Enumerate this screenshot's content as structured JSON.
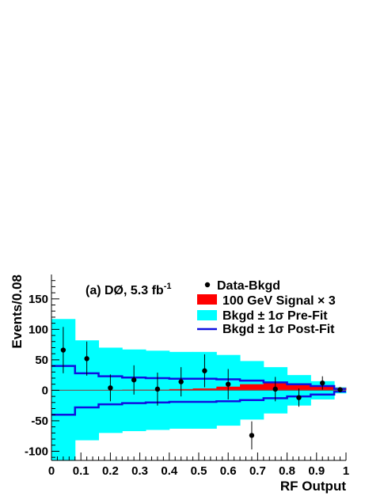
{
  "chart_data": {
    "type": "bar",
    "title": "(a) DØ, 5.3 fb",
    "title_sup": "-1",
    "xlabel": "RF Output",
    "ylabel": "Events/0.08",
    "xlim": [
      0,
      1
    ],
    "ylim": [
      -115,
      190
    ],
    "xticks": [
      0,
      0.1,
      0.2,
      0.3,
      0.4,
      0.5,
      0.6,
      0.7,
      0.8,
      0.9,
      1
    ],
    "xtick_labels": [
      "0",
      "0.1",
      "0.2",
      "0.3",
      "0.4",
      "0.5",
      "0.6",
      "0.7",
      "0.8",
      "0.9",
      "1"
    ],
    "yticks": [
      -100,
      -50,
      0,
      50,
      100,
      150
    ],
    "ytick_labels": [
      "-100",
      "-50",
      "0",
      "50",
      "100",
      "150"
    ],
    "bin_edges": [
      0,
      0.08,
      0.16,
      0.24,
      0.32,
      0.4,
      0.48,
      0.56,
      0.64,
      0.72,
      0.8,
      0.88,
      0.96,
      1.0
    ],
    "prefit_band": [
      117,
      82,
      70,
      67,
      65,
      63,
      63,
      58,
      48,
      38,
      25,
      15,
      5
    ],
    "postfit_band": [
      40,
      28,
      23,
      21,
      20,
      19,
      19,
      18,
      16,
      13,
      10,
      7,
      2
    ],
    "signal_x3": [
      0,
      0,
      0,
      1,
      1,
      2,
      3,
      6,
      10,
      12,
      9,
      6,
      4
    ],
    "data_minus_bkgd": [
      {
        "x": 0.04,
        "y": 66,
        "err": 38
      },
      {
        "x": 0.12,
        "y": 52,
        "err": 28
      },
      {
        "x": 0.2,
        "y": 4,
        "err": 22
      },
      {
        "x": 0.28,
        "y": 17,
        "err": 24
      },
      {
        "x": 0.36,
        "y": 2,
        "err": 27
      },
      {
        "x": 0.44,
        "y": 14,
        "err": 24
      },
      {
        "x": 0.52,
        "y": 32,
        "err": 27
      },
      {
        "x": 0.6,
        "y": 10,
        "err": 25
      },
      {
        "x": 0.68,
        "y": -74,
        "err": 23
      },
      {
        "x": 0.76,
        "y": 2,
        "err": 20
      },
      {
        "x": 0.84,
        "y": -12,
        "err": 15
      },
      {
        "x": 0.92,
        "y": 12,
        "err": 11
      },
      {
        "x": 0.98,
        "y": 1,
        "err": 4
      }
    ],
    "legend": [
      {
        "label": "Data-Bkgd",
        "style": "marker"
      },
      {
        "label": "100 GeV Signal × 3",
        "style": "fill",
        "color": "#ff0000"
      },
      {
        "label": "Bkgd ± 1σ Pre-Fit",
        "style": "fill",
        "color": "#00ffff"
      },
      {
        "label": "Bkgd ± 1σ Post-Fit",
        "style": "line",
        "color": "#1010e0"
      }
    ],
    "legend_position": "top-right",
    "colors": {
      "prefit": "#00ffff",
      "postfit": "#1010e0",
      "signal": "#ff0000",
      "zero_line": "#666666",
      "data": "#000000"
    }
  }
}
